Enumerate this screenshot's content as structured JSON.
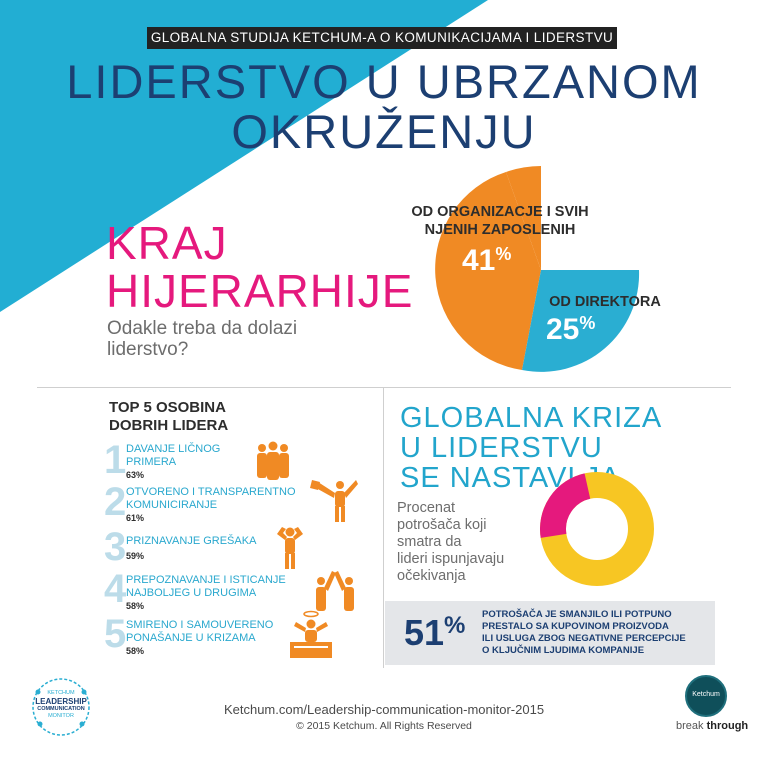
{
  "header": {
    "banner": "GLOBALNA STUDIJA KETCHUM-A O KOMUNIKACIJAMA I LIDERSTVU",
    "title_line1": "LIDERSTVO U UBRZANOM",
    "title_line2": "OKRUŽENJU"
  },
  "section1": {
    "heading_line1": "KRAJ",
    "heading_line2": "HIJERARHIJE",
    "subheading_line1": "Odakle treba da dolazi",
    "subheading_line2": "liderstvo?"
  },
  "pie": {
    "type": "pie",
    "slices": [
      {
        "label_line1": "OD ORGANIZACJE I SVIH",
        "label_line2": "NJENIH ZAPOSLENIH",
        "value": 41,
        "display": "41",
        "color": "#f08a24"
      },
      {
        "label_line1": "OD DIREKTORA",
        "value": 25,
        "display": "25",
        "color": "#2aaed2"
      }
    ],
    "percent_sign": "%"
  },
  "traits": {
    "title_line1": "TOP 5 OSOBINA",
    "title_line2": "DOBRIH LIDERA",
    "items": [
      {
        "num": "1",
        "line1": "DAVANJE LIČNOG",
        "line2": "PRIMERA",
        "pct": "63%",
        "icon": "group-people-icon"
      },
      {
        "num": "2",
        "line1": "OTVORENO I TRANSPARENTNO",
        "line2": "KOMUNICIRANJE",
        "pct": "61%",
        "icon": "megaphone-person-icon"
      },
      {
        "num": "3",
        "line1": "PRIZNAVANJE GREŠAKA",
        "line2": "",
        "pct": "59%",
        "icon": "hands-on-head-person-icon"
      },
      {
        "num": "4",
        "line1": "PREPOZNAVANJE I ISTICANJE",
        "line2": "NAJBOLJEG U DRUGIMA",
        "pct": "58%",
        "icon": "high-five-people-icon"
      },
      {
        "num": "5",
        "line1": "SMIRENO I SAMOUVERENO",
        "line2": "PONAŠANJE U KRIZAMA",
        "pct": "58%",
        "icon": "calm-person-desk-icon"
      }
    ]
  },
  "crisis": {
    "heading_line1": "GLOBALNA KRIZA",
    "heading_line2": "U LIDERSTVU",
    "heading_line3": "SE NASTAVLJA",
    "text_lines": [
      "Procenat",
      "potrošača koji",
      "smatra da",
      "lideri ispunjavaju",
      "očekivanja"
    ],
    "donut_value": 24,
    "donut_display": "24",
    "percent_sign": "%",
    "donut_color": "#f7c623",
    "donut_accent": "#e5197d"
  },
  "stat51": {
    "value": "51",
    "percent_sign": "%",
    "lines": [
      "POTROŠAČA JE SMANJILO ILI POTPUNO",
      "PRESTALO SA KUPOVINOM PROIZVODA",
      "ILI USLUGA ZBOG NEGATIVNE PERCEPCIJE",
      "O KLJUČNIM LJUDIMA KOMPANIJE"
    ]
  },
  "footer": {
    "url": "Ketchum.com/Leadership-communication-monitor-2015",
    "copyright": "© 2015 Ketchum. All Rights Reserved"
  },
  "logos": {
    "monitor_line1": "KETCHUM",
    "monitor_line2": "LEADERSHIP",
    "monitor_line3": "COMMUNICATION",
    "monitor_line4": "MONITOR",
    "ketchum_name": "Ketchum",
    "tagline_part1": "break",
    "tagline_part2": "through"
  },
  "colors": {
    "navy": "#1c3f72",
    "cyan": "#2aaed2",
    "pink": "#e5197d",
    "orange": "#f08a24",
    "yellow": "#f7c623"
  }
}
